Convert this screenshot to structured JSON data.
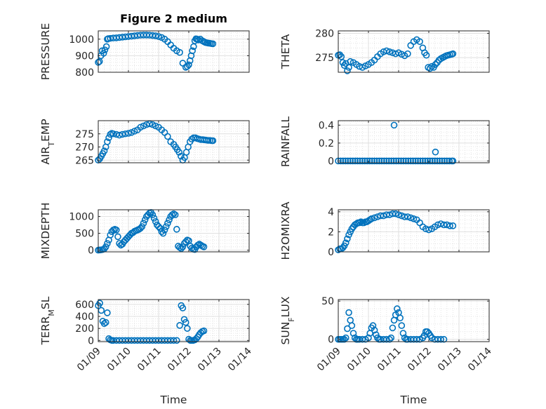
{
  "figure": {
    "title": "Figure 2 medium"
  },
  "chart_data": [
    {
      "type": "scatter",
      "ylabel": "PRESSURE",
      "ylim": [
        800,
        1050
      ],
      "yticks": [
        800,
        900,
        1000
      ],
      "xlim": [
        0,
        5
      ],
      "xticks": [
        0,
        1,
        2,
        3,
        4,
        5
      ],
      "grid": true,
      "x": [
        0.0,
        0.04,
        0.09,
        0.13,
        0.18,
        0.22,
        0.27,
        0.3,
        0.33,
        0.4,
        0.5,
        0.6,
        0.7,
        0.8,
        0.9,
        1.0,
        1.1,
        1.2,
        1.3,
        1.4,
        1.5,
        1.6,
        1.7,
        1.8,
        1.9,
        2.0,
        2.1,
        2.2,
        2.3,
        2.4,
        2.5,
        2.6,
        2.7,
        2.8,
        2.9,
        2.95,
        3.0,
        3.04,
        3.08,
        3.12,
        3.16,
        3.2,
        3.24,
        3.28,
        3.32,
        3.38,
        3.45,
        3.5,
        3.55,
        3.6,
        3.65,
        3.7,
        3.75,
        3.8
      ],
      "y": [
        860,
        865,
        900,
        930,
        915,
        935,
        955,
        1000,
        1003,
        1005,
        1007,
        1008,
        1010,
        1012,
        1014,
        1016,
        1018,
        1020,
        1022,
        1024,
        1025,
        1025,
        1024,
        1022,
        1020,
        1016,
        1010,
        1000,
        985,
        965,
        945,
        930,
        920,
        855,
        830,
        835,
        845,
        870,
        900,
        930,
        955,
        990,
        1002,
        1000,
        995,
        1000,
        990,
        985,
        980,
        978,
        976,
        975,
        973,
        972
      ]
    },
    {
      "type": "scatter",
      "ylabel": "THETA",
      "ylim": [
        272,
        280.5
      ],
      "yticks": [
        275,
        280
      ],
      "xlim": [
        0,
        5
      ],
      "xticks": [
        0,
        1,
        2,
        3,
        4,
        5
      ],
      "grid": true,
      "x": [
        0.0,
        0.05,
        0.1,
        0.15,
        0.2,
        0.25,
        0.3,
        0.35,
        0.4,
        0.5,
        0.6,
        0.7,
        0.8,
        0.9,
        1.0,
        1.1,
        1.2,
        1.3,
        1.4,
        1.5,
        1.6,
        1.7,
        1.8,
        1.9,
        2.0,
        2.1,
        2.2,
        2.3,
        2.4,
        2.5,
        2.6,
        2.7,
        2.8,
        2.86,
        2.92,
        2.98,
        3.04,
        3.1,
        3.16,
        3.22,
        3.28,
        3.34,
        3.4,
        3.46,
        3.52,
        3.58,
        3.64,
        3.7,
        3.76,
        3.8
      ],
      "y": [
        275.5,
        275.6,
        275.2,
        274.0,
        273.4,
        273.8,
        272.3,
        273.0,
        274.2,
        274.0,
        273.6,
        273.2,
        273.0,
        273.3,
        273.6,
        274.0,
        274.5,
        275.2,
        275.8,
        276.2,
        276.4,
        276.2,
        276.0,
        275.8,
        276.0,
        275.7,
        275.4,
        275.8,
        277.5,
        278.3,
        278.7,
        278.3,
        277.0,
        276.0,
        275.5,
        273.0,
        272.8,
        273.2,
        273.0,
        273.6,
        274.0,
        274.5,
        274.8,
        275.0,
        275.2,
        275.4,
        275.5,
        275.6,
        275.7,
        275.8
      ]
    },
    {
      "type": "scatter",
      "ylabel": "AIR_TEMP",
      "ylim": [
        264,
        280
      ],
      "yticks": [
        265,
        270,
        275
      ],
      "xlim": [
        0,
        5
      ],
      "xticks": [
        0,
        1,
        2,
        3,
        4,
        5
      ],
      "grid": true,
      "x": [
        0.0,
        0.05,
        0.1,
        0.15,
        0.2,
        0.25,
        0.3,
        0.35,
        0.4,
        0.45,
        0.5,
        0.6,
        0.7,
        0.8,
        0.9,
        1.0,
        1.1,
        1.2,
        1.3,
        1.4,
        1.5,
        1.6,
        1.7,
        1.8,
        1.9,
        2.0,
        2.1,
        2.2,
        2.3,
        2.4,
        2.5,
        2.56,
        2.62,
        2.68,
        2.74,
        2.8,
        2.86,
        2.92,
        2.98,
        3.04,
        3.1,
        3.16,
        3.22,
        3.28,
        3.34,
        3.4,
        3.46,
        3.52,
        3.58,
        3.64,
        3.7,
        3.76,
        3.8
      ],
      "y": [
        265,
        265.5,
        266.5,
        267.5,
        268.5,
        270,
        272,
        273.5,
        274.8,
        275.2,
        275,
        274.8,
        274.5,
        274.8,
        275,
        275.2,
        275.5,
        276,
        276.5,
        277.5,
        278,
        278.5,
        278.8,
        278.5,
        278,
        277.5,
        276.5,
        275.5,
        274,
        272,
        271,
        270,
        269,
        268,
        266.5,
        265,
        266,
        268,
        270,
        272,
        273,
        273.5,
        273.5,
        273.2,
        273,
        272.8,
        272.8,
        272.7,
        272.6,
        272.5,
        272.5,
        272.4,
        272.4
      ]
    },
    {
      "type": "scatter",
      "ylabel": "RAINFALL",
      "ylim": [
        -0.02,
        0.45
      ],
      "yticks": [
        0,
        0.2,
        0.4
      ],
      "xlim": [
        0,
        5
      ],
      "xticks": [
        0,
        1,
        2,
        3,
        4,
        5
      ],
      "grid": true,
      "x": [
        0.0,
        0.08,
        0.16,
        0.24,
        0.32,
        0.4,
        0.48,
        0.56,
        0.64,
        0.72,
        0.8,
        0.88,
        0.96,
        1.04,
        1.12,
        1.2,
        1.28,
        1.36,
        1.44,
        1.52,
        1.6,
        1.68,
        1.76,
        1.84,
        1.92,
        2.0,
        2.08,
        2.16,
        2.24,
        2.32,
        2.4,
        2.48,
        2.56,
        2.64,
        2.72,
        2.8,
        2.88,
        2.96,
        3.04,
        3.12,
        3.2,
        3.28,
        3.36,
        3.44,
        3.52,
        3.6,
        3.68,
        3.76,
        3.8,
        1.85,
        3.22
      ],
      "y": [
        0,
        0,
        0,
        0,
        0,
        0,
        0,
        0,
        0,
        0,
        0,
        0,
        0,
        0,
        0,
        0,
        0,
        0,
        0,
        0,
        0,
        0,
        0,
        0,
        0,
        0,
        0,
        0,
        0,
        0,
        0,
        0,
        0,
        0,
        0,
        0,
        0,
        0,
        0,
        0,
        0,
        0,
        0,
        0,
        0,
        0,
        0,
        0,
        0,
        0.4,
        0.1
      ]
    },
    {
      "type": "scatter",
      "ylabel": "MIXDEPTH",
      "ylim": [
        -50,
        1200
      ],
      "yticks": [
        0,
        500,
        1000
      ],
      "xlim": [
        0,
        5
      ],
      "xticks": [
        0,
        1,
        2,
        3,
        4,
        5
      ],
      "grid": true,
      "x": [
        0.0,
        0.05,
        0.1,
        0.15,
        0.2,
        0.25,
        0.3,
        0.35,
        0.4,
        0.45,
        0.5,
        0.55,
        0.6,
        0.65,
        0.7,
        0.75,
        0.8,
        0.85,
        0.9,
        0.95,
        1.0,
        1.05,
        1.1,
        1.15,
        1.2,
        1.25,
        1.3,
        1.35,
        1.4,
        1.45,
        1.5,
        1.55,
        1.6,
        1.65,
        1.7,
        1.75,
        1.8,
        1.85,
        1.9,
        1.95,
        2.0,
        2.05,
        2.1,
        2.15,
        2.2,
        2.25,
        2.3,
        2.35,
        2.4,
        2.45,
        2.5,
        2.55,
        2.6,
        2.65,
        2.7,
        2.75,
        2.8,
        2.85,
        2.9,
        2.95,
        3.0,
        3.05,
        3.1,
        3.15,
        3.2,
        3.25,
        3.3,
        3.35,
        3.4,
        3.45,
        3.5
      ],
      "y": [
        0,
        5,
        10,
        20,
        40,
        100,
        200,
        300,
        450,
        550,
        600,
        620,
        600,
        400,
        200,
        150,
        180,
        250,
        300,
        350,
        400,
        450,
        500,
        520,
        560,
        580,
        600,
        620,
        650,
        700,
        800,
        900,
        1000,
        1050,
        1100,
        1120,
        1050,
        950,
        850,
        750,
        700,
        650,
        550,
        500,
        600,
        700,
        800,
        900,
        1000,
        1050,
        1080,
        1050,
        620,
        120,
        80,
        50,
        100,
        200,
        250,
        300,
        280,
        120,
        60,
        30,
        20,
        100,
        150,
        180,
        150,
        120,
        100
      ]
    },
    {
      "type": "scatter",
      "ylabel": "H2OMIXRA",
      "ylim": [
        0,
        4.2
      ],
      "yticks": [
        0,
        2,
        4
      ],
      "xlim": [
        0,
        5
      ],
      "xticks": [
        0,
        1,
        2,
        3,
        4,
        5
      ],
      "grid": true,
      "x": [
        0.0,
        0.05,
        0.1,
        0.15,
        0.2,
        0.25,
        0.3,
        0.35,
        0.4,
        0.45,
        0.5,
        0.55,
        0.6,
        0.65,
        0.7,
        0.75,
        0.8,
        0.85,
        0.9,
        0.95,
        1.0,
        1.05,
        1.1,
        1.2,
        1.3,
        1.4,
        1.5,
        1.6,
        1.7,
        1.8,
        1.9,
        2.0,
        2.1,
        2.2,
        2.3,
        2.4,
        2.5,
        2.6,
        2.7,
        2.8,
        2.9,
        3.0,
        3.1,
        3.2,
        3.3,
        3.4,
        3.5,
        3.6,
        3.7,
        3.8
      ],
      "y": [
        0.2,
        0.3,
        0.3,
        0.4,
        0.6,
        0.9,
        1.3,
        1.7,
        2.0,
        2.3,
        2.5,
        2.7,
        2.8,
        2.9,
        2.9,
        3.0,
        2.9,
        2.9,
        3.0,
        3.0,
        3.1,
        3.2,
        3.3,
        3.4,
        3.5,
        3.6,
        3.6,
        3.7,
        3.7,
        3.8,
        3.8,
        3.7,
        3.6,
        3.5,
        3.5,
        3.4,
        3.3,
        3.2,
        2.9,
        2.5,
        2.3,
        2.2,
        2.3,
        2.5,
        2.7,
        2.8,
        2.7,
        2.7,
        2.6,
        2.6
      ]
    },
    {
      "type": "scatter",
      "ylabel": "TERR_MSL",
      "ylim": [
        -20,
        680
      ],
      "yticks": [
        0,
        200,
        400,
        600
      ],
      "xlim": [
        0,
        5
      ],
      "xticks": [
        0,
        1,
        2,
        3,
        4,
        5
      ],
      "grid": true,
      "x": [
        0.0,
        0.05,
        0.1,
        0.15,
        0.2,
        0.25,
        0.3,
        0.35,
        0.4,
        0.45,
        0.5,
        0.6,
        0.7,
        0.8,
        0.9,
        1.0,
        1.1,
        1.2,
        1.3,
        1.4,
        1.5,
        1.6,
        1.7,
        1.8,
        1.9,
        2.0,
        2.1,
        2.2,
        2.3,
        2.4,
        2.5,
        2.6,
        2.7,
        2.75,
        2.8,
        2.85,
        2.9,
        2.95,
        3.0,
        3.05,
        3.1,
        3.15,
        3.2,
        3.25,
        3.3,
        3.35,
        3.4,
        3.45,
        3.5
      ],
      "y": [
        580,
        620,
        500,
        320,
        280,
        300,
        460,
        30,
        10,
        0,
        0,
        0,
        0,
        0,
        0,
        0,
        0,
        0,
        0,
        0,
        0,
        0,
        0,
        0,
        0,
        0,
        0,
        0,
        0,
        0,
        0,
        0,
        250,
        580,
        540,
        350,
        300,
        200,
        20,
        0,
        0,
        0,
        10,
        30,
        60,
        100,
        130,
        150,
        160
      ]
    },
    {
      "type": "scatter",
      "ylabel": "SUN_FLUX",
      "ylim": [
        -3,
        52
      ],
      "yticks": [
        0,
        50
      ],
      "xlim": [
        0,
        5
      ],
      "xticks": [
        0,
        1,
        2,
        3,
        4,
        5
      ],
      "grid": true,
      "x": [
        0.0,
        0.05,
        0.1,
        0.15,
        0.2,
        0.25,
        0.3,
        0.35,
        0.4,
        0.45,
        0.5,
        0.55,
        0.6,
        0.65,
        0.7,
        0.8,
        0.9,
        1.0,
        1.05,
        1.1,
        1.15,
        1.2,
        1.25,
        1.3,
        1.35,
        1.4,
        1.5,
        1.6,
        1.7,
        1.75,
        1.8,
        1.85,
        1.9,
        1.95,
        2.0,
        2.05,
        2.1,
        2.15,
        2.2,
        2.25,
        2.3,
        2.4,
        2.5,
        2.6,
        2.7,
        2.8,
        2.85,
        2.9,
        2.95,
        3.0,
        3.05,
        3.1,
        3.2,
        3.3,
        3.4,
        3.5
      ],
      "y": [
        0,
        0,
        0,
        0,
        0,
        2,
        14,
        35,
        25,
        18,
        8,
        2,
        0,
        0,
        0,
        0,
        0,
        2,
        8,
        15,
        18,
        12,
        6,
        2,
        0,
        0,
        0,
        0,
        0,
        2,
        15,
        25,
        32,
        40,
        35,
        28,
        18,
        8,
        2,
        0,
        0,
        0,
        0,
        0,
        0,
        2,
        5,
        10,
        10,
        8,
        5,
        2,
        0,
        0,
        0,
        0
      ]
    }
  ],
  "panels": [
    {
      "title": "Figure 2 medium",
      "ylabel": "PRESSURE",
      "yticks": [
        "800",
        "900",
        "1000"
      ],
      "xticks": [],
      "xlabel": ""
    },
    {
      "title": "",
      "ylabel": "THETA",
      "yticks": [
        "275",
        "280"
      ],
      "xticks": [],
      "xlabel": ""
    },
    {
      "title": "",
      "ylabel": "AIR_TEMP",
      "yticks": [
        "265",
        "270",
        "275"
      ],
      "xticks": [],
      "xlabel": ""
    },
    {
      "title": "",
      "ylabel": "RAINFALL",
      "yticks": [
        "0",
        "0.2",
        "0.4"
      ],
      "xticks": [],
      "xlabel": ""
    },
    {
      "title": "",
      "ylabel": "MIXDEPTH",
      "yticks": [
        "0",
        "500",
        "1000"
      ],
      "xticks": [],
      "xlabel": ""
    },
    {
      "title": "",
      "ylabel": "H2OMIXRA",
      "yticks": [
        "0",
        "2",
        "4"
      ],
      "xticks": [],
      "xlabel": ""
    },
    {
      "title": "",
      "ylabel": "TERR_MSL",
      "yticks": [
        "0",
        "200",
        "400",
        "600"
      ],
      "xticks": [
        "01/09",
        "01/10",
        "01/11",
        "01/12",
        "01/13",
        "01/14"
      ],
      "xlabel": "Time"
    },
    {
      "title": "",
      "ylabel": "SUN_FLUX",
      "yticks": [
        "0",
        "50"
      ],
      "xticks": [
        "01/09",
        "01/10",
        "01/11",
        "01/12",
        "01/13",
        "01/14"
      ],
      "xlabel": "Time"
    }
  ],
  "style": {
    "marker_color": "#0072BD",
    "grid_color": "#dfdfdf",
    "axis_color": "#262626"
  }
}
